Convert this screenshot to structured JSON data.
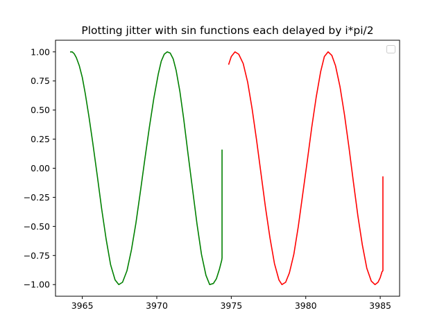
{
  "chart_data": {
    "type": "line",
    "title": "Plotting jitter with sin functions each delayed by i*pi/2",
    "xlabel": "",
    "ylabel": "",
    "xlim": [
      3963.2,
      3986.3
    ],
    "ylim": [
      -1.1,
      1.1
    ],
    "xticks": [
      3965,
      3970,
      3975,
      3980,
      3985
    ],
    "xtick_labels": [
      "3965",
      "3970",
      "3975",
      "3980",
      "3985"
    ],
    "yticks": [
      1.0,
      0.75,
      0.5,
      0.25,
      0.0,
      -0.25,
      -0.5,
      -0.75,
      -1.0
    ],
    "ytick_labels": [
      "1.00",
      "0.75",
      "0.50",
      "0.25",
      "0.00",
      "−0.25",
      "−0.50",
      "−0.75",
      "−1.00"
    ],
    "grid": false,
    "legend": {
      "placement": "top-right",
      "entries": []
    },
    "series": [
      {
        "color": "#008000",
        "x": [
          3964.18,
          3964.32,
          3964.45,
          3964.6,
          3964.8,
          3965.0,
          3965.2,
          3965.45,
          3965.7,
          3966.0,
          3966.3,
          3966.6,
          3966.9,
          3967.2,
          3967.45,
          3967.7,
          3968.0,
          3968.3,
          3968.6,
          3968.9,
          3969.2,
          3969.5,
          3969.8,
          3970.1,
          3970.3,
          3970.5,
          3970.7,
          3970.9,
          3971.1,
          3971.3,
          3971.55,
          3971.8,
          3972.1,
          3972.4,
          3972.7,
          3973.0,
          3973.3,
          3973.55,
          3973.8,
          3974.0,
          3974.2,
          3974.36,
          3974.38,
          3974.38
        ],
        "y": [
          1.0,
          1.0,
          0.985,
          0.95,
          0.88,
          0.78,
          0.64,
          0.44,
          0.22,
          -0.06,
          -0.35,
          -0.61,
          -0.83,
          -0.96,
          -1.0,
          -0.98,
          -0.88,
          -0.7,
          -0.47,
          -0.2,
          0.08,
          0.35,
          0.6,
          0.81,
          0.92,
          0.98,
          1.0,
          0.99,
          0.94,
          0.84,
          0.66,
          0.43,
          0.12,
          -0.18,
          -0.48,
          -0.74,
          -0.92,
          -1.0,
          -0.99,
          -0.95,
          -0.87,
          -0.79,
          -0.77,
          0.16
        ]
      },
      {
        "color": "#ff0000",
        "x": [
          3974.82,
          3975.0,
          3975.25,
          3975.5,
          3975.8,
          3976.1,
          3976.4,
          3976.7,
          3977.0,
          3977.3,
          3977.6,
          3977.9,
          3978.2,
          3978.4,
          3978.65,
          3978.9,
          3979.2,
          3979.5,
          3979.8,
          3980.1,
          3980.4,
          3980.7,
          3981.0,
          3981.25,
          3981.5,
          3981.75,
          3982.0,
          3982.3,
          3982.6,
          3982.9,
          3983.2,
          3983.5,
          3983.8,
          3984.1,
          3984.4,
          3984.65,
          3984.85,
          3985.0,
          3985.12,
          3985.18,
          3985.18
        ],
        "y": [
          0.89,
          0.96,
          1.0,
          0.98,
          0.9,
          0.74,
          0.51,
          0.24,
          -0.05,
          -0.34,
          -0.6,
          -0.82,
          -0.96,
          -1.0,
          -0.98,
          -0.9,
          -0.74,
          -0.5,
          -0.22,
          0.06,
          0.35,
          0.61,
          0.83,
          0.96,
          1.0,
          0.97,
          0.88,
          0.7,
          0.46,
          0.18,
          -0.12,
          -0.41,
          -0.66,
          -0.86,
          -0.97,
          -1.0,
          -0.98,
          -0.94,
          -0.89,
          -0.88,
          -0.07
        ]
      }
    ]
  }
}
